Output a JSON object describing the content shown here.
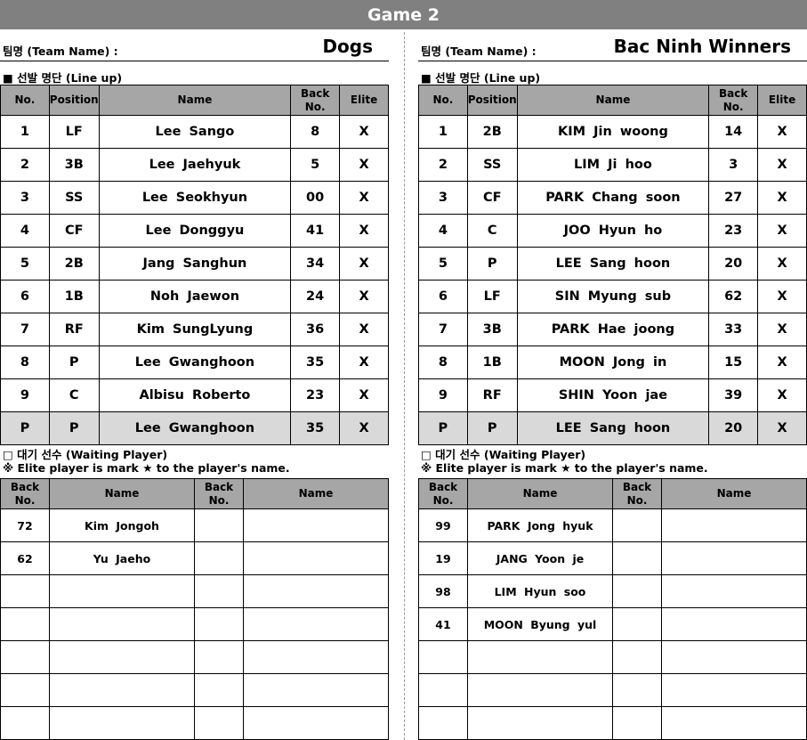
{
  "title": "Game 2",
  "labels": {
    "team_name": "팀명 (Team Name) :",
    "lineup": "■ 선발 명단 (Line up)",
    "waiting": "□ 대기 선수 (Waiting Player)",
    "elite_note": "※ Elite player is mark ★ to the player's name."
  },
  "lineup_headers": [
    "No.",
    "Position",
    "Name",
    "Back No.",
    "Elite"
  ],
  "waiting_headers": [
    "Back No.",
    "Name",
    "Back No.",
    "Name"
  ],
  "teams": [
    {
      "name": "Dogs",
      "lineup": [
        [
          "1",
          "LF",
          "Lee Sango",
          "8",
          "X"
        ],
        [
          "2",
          "3B",
          "Lee Jaehyuk",
          "5",
          "X"
        ],
        [
          "3",
          "SS",
          "Lee Seokhyun",
          "00",
          "X"
        ],
        [
          "4",
          "CF",
          "Lee Donggyu",
          "41",
          "X"
        ],
        [
          "5",
          "2B",
          "Jang Sanghun",
          "34",
          "X"
        ],
        [
          "6",
          "1B",
          "Noh Jaewon",
          "24",
          "X"
        ],
        [
          "7",
          "RF",
          "Kim SungLyung",
          "36",
          "X"
        ],
        [
          "8",
          "P",
          "Lee Gwanghoon",
          "35",
          "X"
        ],
        [
          "9",
          "C",
          "Albisu Roberto",
          "23",
          "X"
        ],
        [
          "P",
          "P",
          "Lee Gwanghoon",
          "35",
          "X"
        ]
      ],
      "waiting": [
        [
          "72",
          "Kim Jongoh",
          "",
          ""
        ],
        [
          "62",
          "Yu Jaeho",
          "",
          ""
        ],
        [
          "",
          "",
          "",
          ""
        ],
        [
          "",
          "",
          "",
          ""
        ],
        [
          "",
          "",
          "",
          ""
        ],
        [
          "",
          "",
          "",
          ""
        ],
        [
          "",
          "",
          "",
          ""
        ]
      ]
    },
    {
      "name": "Bac Ninh Winners",
      "lineup": [
        [
          "1",
          "2B",
          "KIM Jin woong",
          "14",
          "X"
        ],
        [
          "2",
          "SS",
          "LIM Ji hoo",
          "3",
          "X"
        ],
        [
          "3",
          "CF",
          "PARK Chang soon",
          "27",
          "X"
        ],
        [
          "4",
          "C",
          "JOO Hyun ho",
          "23",
          "X"
        ],
        [
          "5",
          "P",
          "LEE Sang hoon",
          "20",
          "X"
        ],
        [
          "6",
          "LF",
          "SIN Myung sub",
          "62",
          "X"
        ],
        [
          "7",
          "3B",
          "PARK Hae joong",
          "33",
          "X"
        ],
        [
          "8",
          "1B",
          "MOON Jong in",
          "15",
          "X"
        ],
        [
          "9",
          "RF",
          "SHIN Yoon jae",
          "39",
          "X"
        ],
        [
          "P",
          "P",
          "LEE Sang hoon",
          "20",
          "X"
        ]
      ],
      "waiting": [
        [
          "99",
          "PARK Jong hyuk",
          "",
          ""
        ],
        [
          "19",
          "JANG Yoon je",
          "",
          ""
        ],
        [
          "98",
          "LIM Hyun soo",
          "",
          ""
        ],
        [
          "41",
          "MOON Byung yul",
          "",
          ""
        ],
        [
          "",
          "",
          "",
          ""
        ],
        [
          "",
          "",
          "",
          ""
        ],
        [
          "",
          "",
          "",
          ""
        ]
      ]
    }
  ]
}
